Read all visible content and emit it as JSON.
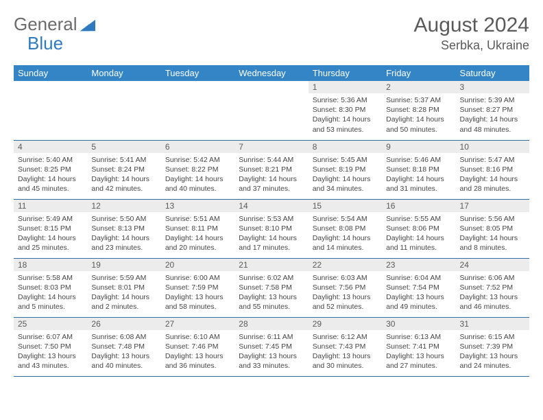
{
  "logo": {
    "word1": "General",
    "word2": "Blue",
    "triangle_color": "#2f7abf"
  },
  "header": {
    "title": "August 2024",
    "location": "Serbka, Ukraine"
  },
  "colors": {
    "header_bg": "#3385c6",
    "header_text": "#ffffff",
    "daynum_bg": "#ececec",
    "border": "#2f6da3",
    "text": "#454545"
  },
  "weekdays": [
    "Sunday",
    "Monday",
    "Tuesday",
    "Wednesday",
    "Thursday",
    "Friday",
    "Saturday"
  ],
  "weeks": [
    [
      {
        "n": "",
        "sr": "",
        "ss": "",
        "dl": ""
      },
      {
        "n": "",
        "sr": "",
        "ss": "",
        "dl": ""
      },
      {
        "n": "",
        "sr": "",
        "ss": "",
        "dl": ""
      },
      {
        "n": "",
        "sr": "",
        "ss": "",
        "dl": ""
      },
      {
        "n": "1",
        "sr": "Sunrise: 5:36 AM",
        "ss": "Sunset: 8:30 PM",
        "dl": "Daylight: 14 hours and 53 minutes."
      },
      {
        "n": "2",
        "sr": "Sunrise: 5:37 AM",
        "ss": "Sunset: 8:28 PM",
        "dl": "Daylight: 14 hours and 50 minutes."
      },
      {
        "n": "3",
        "sr": "Sunrise: 5:39 AM",
        "ss": "Sunset: 8:27 PM",
        "dl": "Daylight: 14 hours and 48 minutes."
      }
    ],
    [
      {
        "n": "4",
        "sr": "Sunrise: 5:40 AM",
        "ss": "Sunset: 8:25 PM",
        "dl": "Daylight: 14 hours and 45 minutes."
      },
      {
        "n": "5",
        "sr": "Sunrise: 5:41 AM",
        "ss": "Sunset: 8:24 PM",
        "dl": "Daylight: 14 hours and 42 minutes."
      },
      {
        "n": "6",
        "sr": "Sunrise: 5:42 AM",
        "ss": "Sunset: 8:22 PM",
        "dl": "Daylight: 14 hours and 40 minutes."
      },
      {
        "n": "7",
        "sr": "Sunrise: 5:44 AM",
        "ss": "Sunset: 8:21 PM",
        "dl": "Daylight: 14 hours and 37 minutes."
      },
      {
        "n": "8",
        "sr": "Sunrise: 5:45 AM",
        "ss": "Sunset: 8:19 PM",
        "dl": "Daylight: 14 hours and 34 minutes."
      },
      {
        "n": "9",
        "sr": "Sunrise: 5:46 AM",
        "ss": "Sunset: 8:18 PM",
        "dl": "Daylight: 14 hours and 31 minutes."
      },
      {
        "n": "10",
        "sr": "Sunrise: 5:47 AM",
        "ss": "Sunset: 8:16 PM",
        "dl": "Daylight: 14 hours and 28 minutes."
      }
    ],
    [
      {
        "n": "11",
        "sr": "Sunrise: 5:49 AM",
        "ss": "Sunset: 8:15 PM",
        "dl": "Daylight: 14 hours and 25 minutes."
      },
      {
        "n": "12",
        "sr": "Sunrise: 5:50 AM",
        "ss": "Sunset: 8:13 PM",
        "dl": "Daylight: 14 hours and 23 minutes."
      },
      {
        "n": "13",
        "sr": "Sunrise: 5:51 AM",
        "ss": "Sunset: 8:11 PM",
        "dl": "Daylight: 14 hours and 20 minutes."
      },
      {
        "n": "14",
        "sr": "Sunrise: 5:53 AM",
        "ss": "Sunset: 8:10 PM",
        "dl": "Daylight: 14 hours and 17 minutes."
      },
      {
        "n": "15",
        "sr": "Sunrise: 5:54 AM",
        "ss": "Sunset: 8:08 PM",
        "dl": "Daylight: 14 hours and 14 minutes."
      },
      {
        "n": "16",
        "sr": "Sunrise: 5:55 AM",
        "ss": "Sunset: 8:06 PM",
        "dl": "Daylight: 14 hours and 11 minutes."
      },
      {
        "n": "17",
        "sr": "Sunrise: 5:56 AM",
        "ss": "Sunset: 8:05 PM",
        "dl": "Daylight: 14 hours and 8 minutes."
      }
    ],
    [
      {
        "n": "18",
        "sr": "Sunrise: 5:58 AM",
        "ss": "Sunset: 8:03 PM",
        "dl": "Daylight: 14 hours and 5 minutes."
      },
      {
        "n": "19",
        "sr": "Sunrise: 5:59 AM",
        "ss": "Sunset: 8:01 PM",
        "dl": "Daylight: 14 hours and 2 minutes."
      },
      {
        "n": "20",
        "sr": "Sunrise: 6:00 AM",
        "ss": "Sunset: 7:59 PM",
        "dl": "Daylight: 13 hours and 58 minutes."
      },
      {
        "n": "21",
        "sr": "Sunrise: 6:02 AM",
        "ss": "Sunset: 7:58 PM",
        "dl": "Daylight: 13 hours and 55 minutes."
      },
      {
        "n": "22",
        "sr": "Sunrise: 6:03 AM",
        "ss": "Sunset: 7:56 PM",
        "dl": "Daylight: 13 hours and 52 minutes."
      },
      {
        "n": "23",
        "sr": "Sunrise: 6:04 AM",
        "ss": "Sunset: 7:54 PM",
        "dl": "Daylight: 13 hours and 49 minutes."
      },
      {
        "n": "24",
        "sr": "Sunrise: 6:06 AM",
        "ss": "Sunset: 7:52 PM",
        "dl": "Daylight: 13 hours and 46 minutes."
      }
    ],
    [
      {
        "n": "25",
        "sr": "Sunrise: 6:07 AM",
        "ss": "Sunset: 7:50 PM",
        "dl": "Daylight: 13 hours and 43 minutes."
      },
      {
        "n": "26",
        "sr": "Sunrise: 6:08 AM",
        "ss": "Sunset: 7:48 PM",
        "dl": "Daylight: 13 hours and 40 minutes."
      },
      {
        "n": "27",
        "sr": "Sunrise: 6:10 AM",
        "ss": "Sunset: 7:46 PM",
        "dl": "Daylight: 13 hours and 36 minutes."
      },
      {
        "n": "28",
        "sr": "Sunrise: 6:11 AM",
        "ss": "Sunset: 7:45 PM",
        "dl": "Daylight: 13 hours and 33 minutes."
      },
      {
        "n": "29",
        "sr": "Sunrise: 6:12 AM",
        "ss": "Sunset: 7:43 PM",
        "dl": "Daylight: 13 hours and 30 minutes."
      },
      {
        "n": "30",
        "sr": "Sunrise: 6:13 AM",
        "ss": "Sunset: 7:41 PM",
        "dl": "Daylight: 13 hours and 27 minutes."
      },
      {
        "n": "31",
        "sr": "Sunrise: 6:15 AM",
        "ss": "Sunset: 7:39 PM",
        "dl": "Daylight: 13 hours and 24 minutes."
      }
    ]
  ]
}
